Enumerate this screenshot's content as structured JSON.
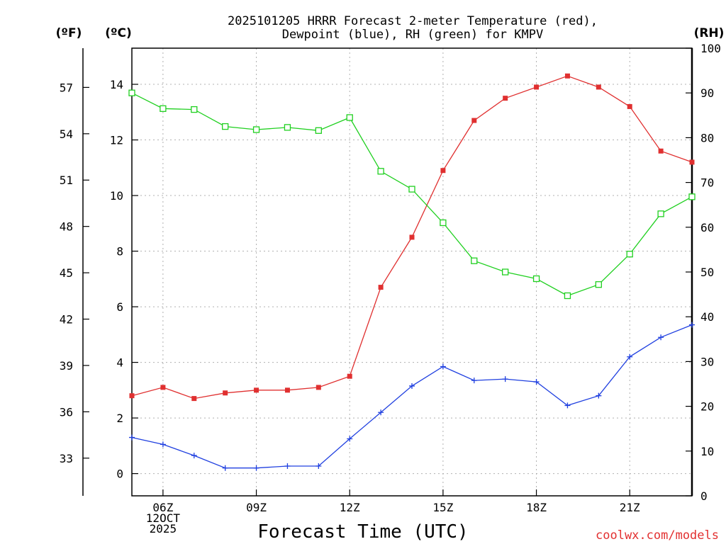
{
  "chart_data": {
    "type": "line",
    "title_line1": "2025101205 HRRR Forecast 2-meter Temperature (red),",
    "title_line2": "Dewpoint (blue), RH (green) for KMPV",
    "unit_f": "(ºF)",
    "unit_c": "(ºC)",
    "unit_rh": "(RH)",
    "xlabel": "Forecast Time (UTC)",
    "credit": "coolwx.com/models",
    "x_hours": [
      5,
      6,
      7,
      8,
      9,
      10,
      11,
      12,
      13,
      14,
      15,
      16,
      17,
      18,
      19,
      20,
      21,
      22,
      23
    ],
    "xlim": [
      5,
      23
    ],
    "x_ticks": [
      {
        "hour": 6,
        "lines": [
          "06Z",
          "12OCT",
          "2025"
        ]
      },
      {
        "hour": 9,
        "lines": [
          "09Z"
        ]
      },
      {
        "hour": 12,
        "lines": [
          "12Z"
        ]
      },
      {
        "hour": 15,
        "lines": [
          "15Z"
        ]
      },
      {
        "hour": 18,
        "lines": [
          "18Z"
        ]
      },
      {
        "hour": 21,
        "lines": [
          "21Z"
        ]
      }
    ],
    "ylim_c": [
      -0.8,
      15.3
    ],
    "y_ticks_c": [
      0,
      2,
      4,
      6,
      8,
      10,
      12,
      14
    ],
    "y_ticks_f": [
      33,
      36,
      39,
      42,
      45,
      48,
      51,
      54,
      57
    ],
    "ylim_rh": [
      0,
      100
    ],
    "y_ticks_rh": [
      0,
      10,
      20,
      30,
      40,
      50,
      60,
      70,
      80,
      90,
      100
    ],
    "series": [
      {
        "name": "Temperature",
        "color": "#e03030",
        "axis": "c",
        "marker": "filled-square",
        "values": [
          2.8,
          3.1,
          2.7,
          2.9,
          3.0,
          3.0,
          3.1,
          3.5,
          6.7,
          8.5,
          10.9,
          12.7,
          13.5,
          13.9,
          14.3,
          13.9,
          13.2,
          11.6,
          11.2
        ]
      },
      {
        "name": "Dewpoint",
        "color": "#2040e0",
        "axis": "c",
        "marker": "plus",
        "values": [
          1.3,
          1.05,
          0.65,
          0.2,
          0.2,
          0.27,
          0.27,
          1.25,
          2.2,
          3.15,
          3.85,
          3.35,
          3.4,
          3.3,
          2.45,
          2.8,
          4.2,
          4.9,
          5.35
        ]
      },
      {
        "name": "RH",
        "color": "#20d020",
        "axis": "rh",
        "marker": "open-square",
        "values": [
          90.0,
          86.5,
          86.3,
          82.5,
          81.8,
          82.3,
          81.6,
          84.5,
          72.5,
          68.5,
          61.0,
          52.5,
          50.0,
          48.5,
          44.7,
          47.2,
          54.0,
          63.0,
          66.8
        ]
      }
    ]
  }
}
